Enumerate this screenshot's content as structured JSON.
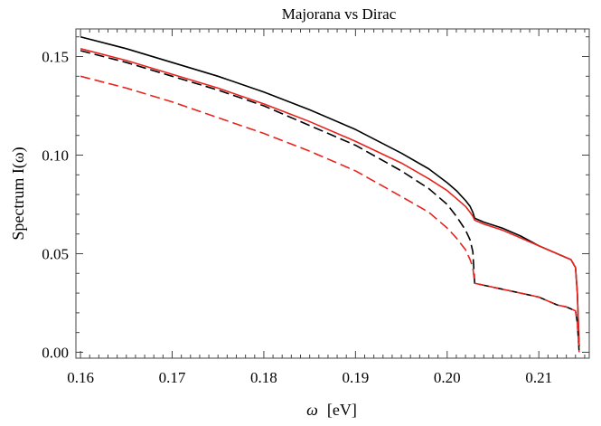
{
  "chart_data": {
    "type": "line",
    "title": "Majorana vs Dirac",
    "xlabel_symbol": "ω",
    "xlabel_unit": "[eV]",
    "ylabel": "Spectrum I(ω)",
    "xlim": [
      0.1595,
      0.2155
    ],
    "ylim": [
      -0.003,
      0.164
    ],
    "xticks": [
      0.16,
      0.17,
      0.18,
      0.19,
      0.2,
      0.21
    ],
    "xtick_labels": [
      "0.16",
      "0.17",
      "0.18",
      "0.19",
      "0.20",
      "0.21"
    ],
    "yticks": [
      0.0,
      0.05,
      0.1,
      0.15
    ],
    "ytick_labels": [
      "0.00",
      "0.05",
      "0.10",
      "0.15"
    ],
    "grid": false,
    "legend": "none",
    "series": [
      {
        "color": "#000000",
        "style": "solid",
        "x": [
          0.16,
          0.165,
          0.17,
          0.175,
          0.18,
          0.185,
          0.19,
          0.195,
          0.198,
          0.2,
          0.201,
          0.202,
          0.2025,
          0.2028,
          0.203,
          0.204,
          0.206,
          0.208,
          0.21,
          0.212,
          0.213,
          0.2135,
          0.214,
          0.2142,
          0.2144
        ],
        "y": [
          0.16,
          0.154,
          0.147,
          0.14,
          0.132,
          0.123,
          0.113,
          0.101,
          0.093,
          0.086,
          0.082,
          0.077,
          0.074,
          0.071,
          0.068,
          0.066,
          0.063,
          0.059,
          0.054,
          0.05,
          0.048,
          0.047,
          0.043,
          0.03,
          0.003
        ]
      },
      {
        "color": "#e8231e",
        "style": "solid",
        "x": [
          0.16,
          0.165,
          0.17,
          0.175,
          0.18,
          0.185,
          0.19,
          0.195,
          0.198,
          0.2,
          0.201,
          0.202,
          0.2025,
          0.2028,
          0.203,
          0.204,
          0.206,
          0.208,
          0.21,
          0.212,
          0.213,
          0.2135,
          0.214,
          0.2142,
          0.2144
        ],
        "y": [
          0.154,
          0.148,
          0.141,
          0.134,
          0.126,
          0.117,
          0.107,
          0.096,
          0.088,
          0.082,
          0.078,
          0.074,
          0.071,
          0.069,
          0.067,
          0.065,
          0.062,
          0.058,
          0.054,
          0.05,
          0.048,
          0.047,
          0.043,
          0.03,
          0.003
        ]
      },
      {
        "color": "#000000",
        "style": "dashed",
        "x": [
          0.16,
          0.165,
          0.17,
          0.175,
          0.18,
          0.185,
          0.19,
          0.195,
          0.198,
          0.2,
          0.201,
          0.202,
          0.2025,
          0.2028,
          0.203,
          0.204,
          0.206,
          0.208,
          0.21,
          0.212,
          0.213,
          0.2135,
          0.214,
          0.2142,
          0.2144
        ],
        "y": [
          0.153,
          0.147,
          0.14,
          0.133,
          0.125,
          0.115,
          0.105,
          0.092,
          0.083,
          0.075,
          0.069,
          0.062,
          0.057,
          0.051,
          0.035,
          0.034,
          0.032,
          0.03,
          0.028,
          0.024,
          0.023,
          0.022,
          0.021,
          0.015,
          0.0
        ]
      },
      {
        "color": "#e8231e",
        "style": "dashed",
        "x": [
          0.16,
          0.165,
          0.17,
          0.175,
          0.18,
          0.185,
          0.19,
          0.195,
          0.198,
          0.2,
          0.201,
          0.202,
          0.2025,
          0.2028,
          0.203,
          0.204,
          0.206,
          0.208,
          0.21,
          0.212,
          0.213,
          0.2135,
          0.214,
          0.2142,
          0.2144
        ],
        "y": [
          0.14,
          0.134,
          0.127,
          0.119,
          0.111,
          0.102,
          0.092,
          0.079,
          0.071,
          0.063,
          0.058,
          0.052,
          0.047,
          0.043,
          0.035,
          0.034,
          0.032,
          0.03,
          0.028,
          0.024,
          0.023,
          0.022,
          0.021,
          0.015,
          0.0
        ]
      }
    ]
  }
}
